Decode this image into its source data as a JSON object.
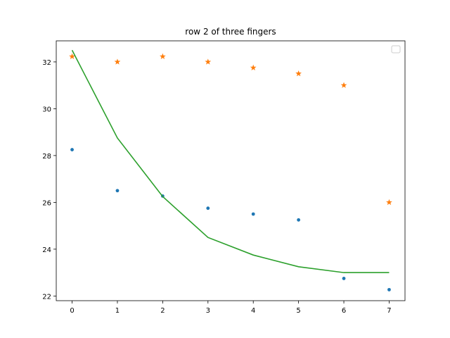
{
  "chart_data": {
    "type": "scatter",
    "title": "row 2 of three fingers",
    "xlabel": "",
    "ylabel": "",
    "xlim": [
      -0.35,
      7.35
    ],
    "ylim": [
      21.8,
      32.9
    ],
    "x_ticks": [
      "0",
      "1",
      "2",
      "3",
      "4",
      "5",
      "6",
      "7"
    ],
    "y_ticks": [
      "22",
      "24",
      "26",
      "28",
      "30",
      "32"
    ],
    "grid": false,
    "legend": "top-right (empty)",
    "x": [
      0,
      1,
      2,
      3,
      4,
      5,
      6,
      7
    ],
    "series": [
      {
        "marker": "dot",
        "color": "#1f77b4",
        "values": [
          28.25,
          26.5,
          26.27,
          25.75,
          25.5,
          25.25,
          22.75,
          22.27
        ]
      },
      {
        "marker": "star",
        "color": "#ff7f0e",
        "values": [
          32.23,
          32.0,
          32.23,
          32.0,
          31.75,
          31.5,
          31.0,
          26.0
        ]
      },
      {
        "marker": "line",
        "color": "#2ca02c",
        "values": [
          32.5,
          28.75,
          26.25,
          24.5,
          23.75,
          23.25,
          23.0,
          23.0
        ]
      }
    ]
  }
}
